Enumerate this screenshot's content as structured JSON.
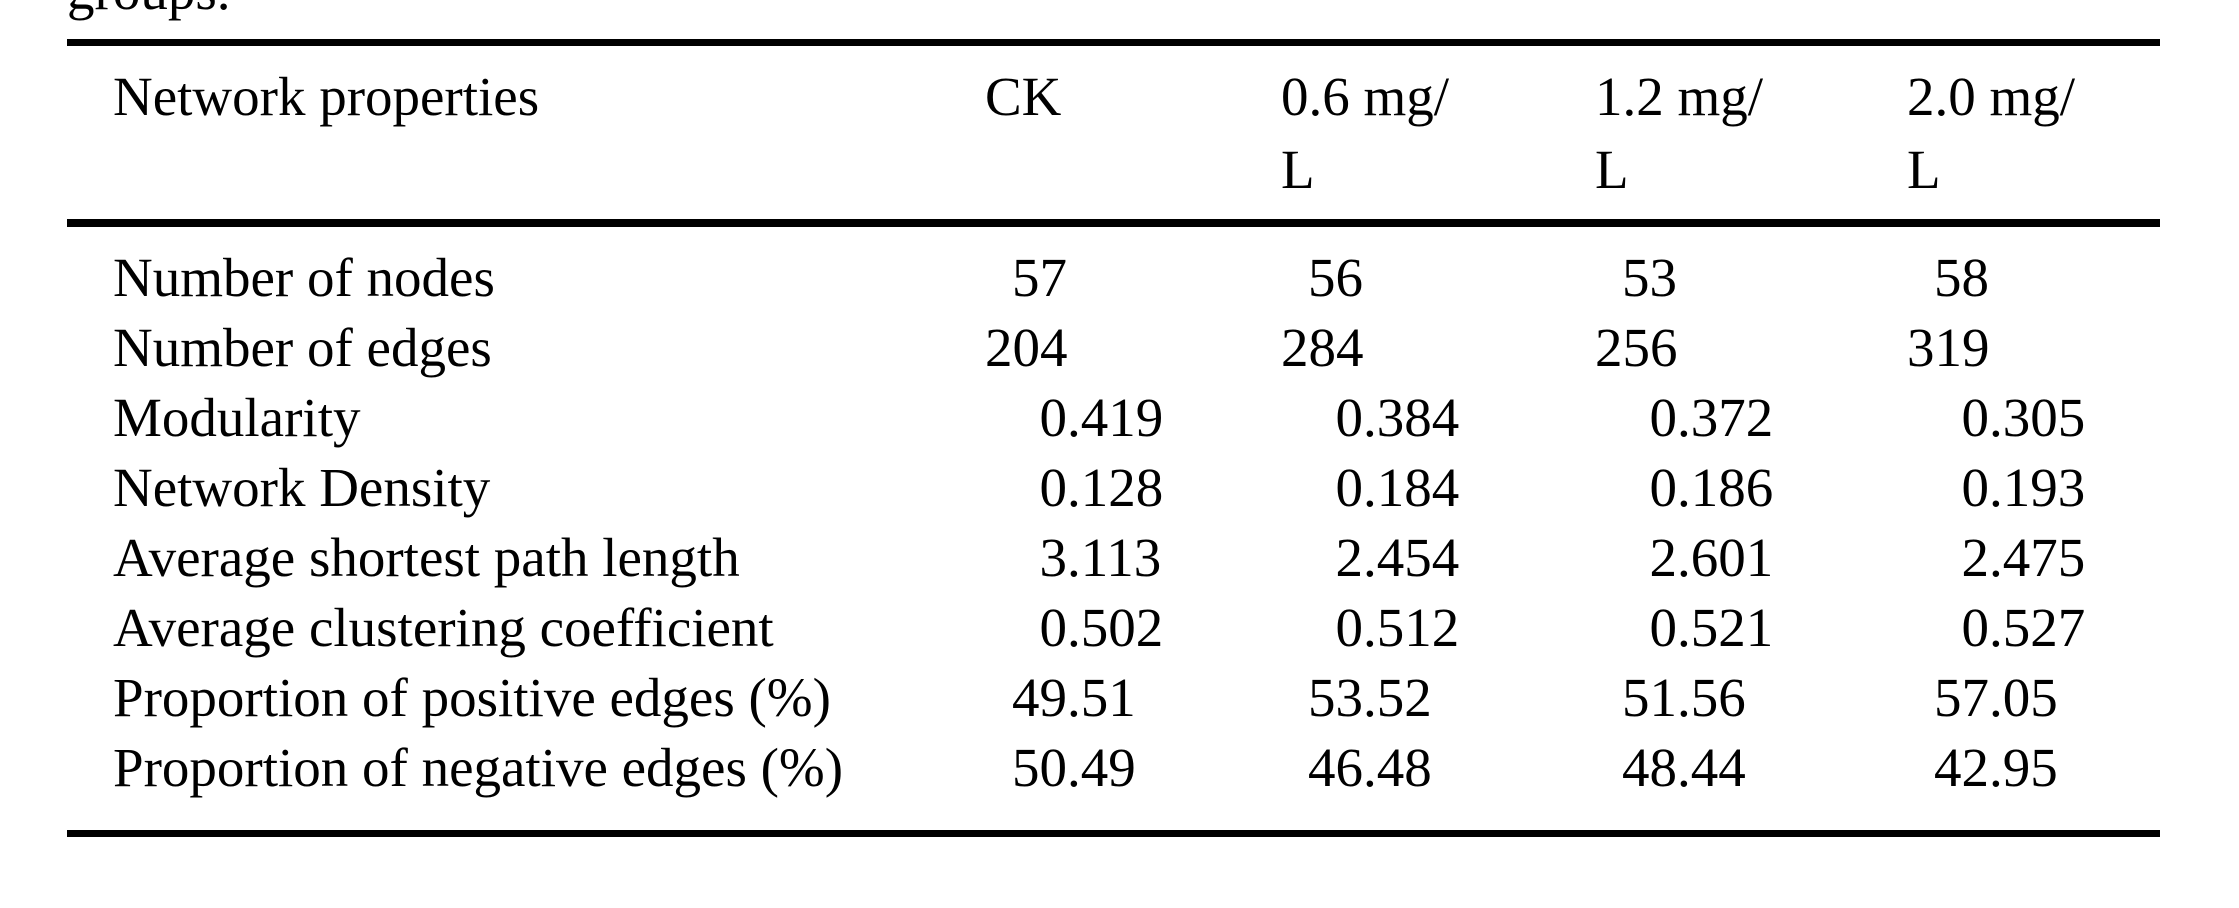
{
  "page": {
    "leading_text_fragment": "groups.",
    "text_color": "#000000",
    "background": "#ffffff"
  },
  "table": {
    "columns": [
      "Network properties",
      "CK",
      "0.6 mg/\nL",
      "1.2 mg/\nL",
      "2.0 mg/\nL"
    ],
    "rows": [
      {
        "label": "Number of nodes",
        "values": [
          "57",
          "56",
          "53",
          "58"
        ]
      },
      {
        "label": "Number of edges",
        "values": [
          "204",
          "284",
          "256",
          "319"
        ]
      },
      {
        "label": "Modularity",
        "values": [
          "0.419",
          "0.384",
          "0.372",
          "0.305"
        ]
      },
      {
        "label": "Network Density",
        "values": [
          "0.128",
          "0.184",
          "0.186",
          "0.193"
        ]
      },
      {
        "label": "Average shortest path length",
        "values": [
          "3.113",
          "2.454",
          "2.601",
          "2.475"
        ]
      },
      {
        "label": "Average clustering coefficient",
        "values": [
          "0.502",
          "0.512",
          "0.521",
          "0.527"
        ]
      },
      {
        "label": "Proportion of positive edges (%)",
        "values": [
          "49.51",
          "53.52",
          "51.56",
          "57.05"
        ]
      },
      {
        "label": "Proportion of negative edges (%)",
        "values": [
          "50.49",
          "46.48",
          "48.44",
          "42.95"
        ]
      }
    ]
  }
}
